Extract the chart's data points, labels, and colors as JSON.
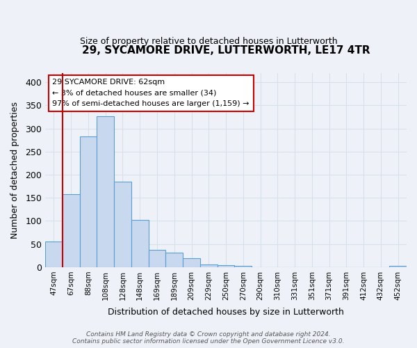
{
  "title": "29, SYCAMORE DRIVE, LUTTERWORTH, LE17 4TR",
  "subtitle": "Size of property relative to detached houses in Lutterworth",
  "xlabel": "Distribution of detached houses by size in Lutterworth",
  "ylabel": "Number of detached properties",
  "bin_labels": [
    "47sqm",
    "67sqm",
    "88sqm",
    "108sqm",
    "128sqm",
    "148sqm",
    "169sqm",
    "189sqm",
    "209sqm",
    "229sqm",
    "250sqm",
    "270sqm",
    "290sqm",
    "310sqm",
    "331sqm",
    "351sqm",
    "371sqm",
    "391sqm",
    "412sqm",
    "432sqm",
    "452sqm"
  ],
  "bar_values": [
    55,
    158,
    283,
    327,
    185,
    102,
    37,
    32,
    19,
    6,
    4,
    3,
    0,
    0,
    0,
    0,
    0,
    0,
    0,
    0,
    3
  ],
  "bar_color": "#c8d8ee",
  "bar_edge_color": "#5a9fd4",
  "highlight_color": "#cc0000",
  "annotation_box_color": "#cc0000",
  "annotation_line1": "29 SYCAMORE DRIVE: 62sqm",
  "annotation_line2": "← 3% of detached houses are smaller (34)",
  "annotation_line3": "97% of semi-detached houses are larger (1,159) →",
  "ylim": [
    0,
    420
  ],
  "yticks": [
    0,
    50,
    100,
    150,
    200,
    250,
    300,
    350,
    400
  ],
  "footer_line1": "Contains HM Land Registry data © Crown copyright and database right 2024.",
  "footer_line2": "Contains public sector information licensed under the Open Government Licence v3.0.",
  "background_color": "#eef2f8",
  "grid_color": "#d8e0ec"
}
